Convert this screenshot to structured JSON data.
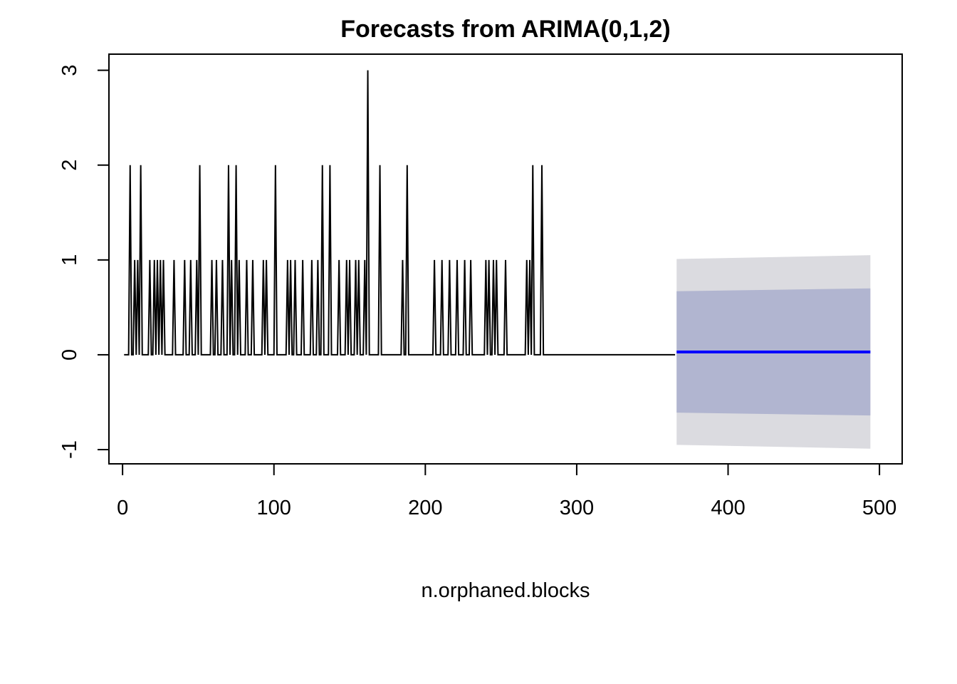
{
  "chart_data": {
    "type": "line",
    "title": "Forecasts from ARIMA(0,1,2)",
    "xlabel": "n.orphaned.blocks",
    "ylabel": "",
    "xlim": [
      -9,
      515
    ],
    "ylim": [
      -1.15,
      3.17
    ],
    "x_ticks": [
      0,
      100,
      200,
      300,
      400,
      500
    ],
    "y_ticks": [
      -1,
      0,
      1,
      2,
      3
    ],
    "grid": false,
    "colors": {
      "observed": "#000000",
      "forecast": "#0000ff",
      "band80": "#b1b5d0",
      "band95": "#dbdbe0"
    },
    "observed": {
      "x_start": 1,
      "x_end": 365,
      "events": [
        {
          "x": 5,
          "v": 2
        },
        {
          "x": 8,
          "v": 1
        },
        {
          "x": 10,
          "v": 1
        },
        {
          "x": 12,
          "v": 2
        },
        {
          "x": 18,
          "v": 1
        },
        {
          "x": 21,
          "v": 1
        },
        {
          "x": 23,
          "v": 1
        },
        {
          "x": 25,
          "v": 1
        },
        {
          "x": 27,
          "v": 1
        },
        {
          "x": 34,
          "v": 1
        },
        {
          "x": 41,
          "v": 1
        },
        {
          "x": 45,
          "v": 1
        },
        {
          "x": 49,
          "v": 1
        },
        {
          "x": 51,
          "v": 2
        },
        {
          "x": 59,
          "v": 1
        },
        {
          "x": 62,
          "v": 1
        },
        {
          "x": 66,
          "v": 1
        },
        {
          "x": 70,
          "v": 2
        },
        {
          "x": 72,
          "v": 1
        },
        {
          "x": 75,
          "v": 2
        },
        {
          "x": 77,
          "v": 1
        },
        {
          "x": 82,
          "v": 1
        },
        {
          "x": 86,
          "v": 1
        },
        {
          "x": 93,
          "v": 1
        },
        {
          "x": 95,
          "v": 1
        },
        {
          "x": 101,
          "v": 2
        },
        {
          "x": 109,
          "v": 1
        },
        {
          "x": 111,
          "v": 1
        },
        {
          "x": 114,
          "v": 1
        },
        {
          "x": 119,
          "v": 1
        },
        {
          "x": 125,
          "v": 1
        },
        {
          "x": 129,
          "v": 1
        },
        {
          "x": 132,
          "v": 2
        },
        {
          "x": 137,
          "v": 2
        },
        {
          "x": 143,
          "v": 1
        },
        {
          "x": 148,
          "v": 1
        },
        {
          "x": 150,
          "v": 1
        },
        {
          "x": 154,
          "v": 1
        },
        {
          "x": 156,
          "v": 1
        },
        {
          "x": 160,
          "v": 1
        },
        {
          "x": 162,
          "v": 3
        },
        {
          "x": 170,
          "v": 2
        },
        {
          "x": 185,
          "v": 1
        },
        {
          "x": 188,
          "v": 2
        },
        {
          "x": 206,
          "v": 1
        },
        {
          "x": 211,
          "v": 1
        },
        {
          "x": 216,
          "v": 1
        },
        {
          "x": 221,
          "v": 1
        },
        {
          "x": 226,
          "v": 1
        },
        {
          "x": 230,
          "v": 1
        },
        {
          "x": 240,
          "v": 1
        },
        {
          "x": 242,
          "v": 1
        },
        {
          "x": 245,
          "v": 1
        },
        {
          "x": 247,
          "v": 1
        },
        {
          "x": 253,
          "v": 1
        },
        {
          "x": 267,
          "v": 1
        },
        {
          "x": 269,
          "v": 1
        },
        {
          "x": 271,
          "v": 2
        },
        {
          "x": 277,
          "v": 2
        }
      ]
    },
    "forecast": {
      "x": [
        366,
        494
      ],
      "mean": [
        0.03,
        0.03
      ],
      "lo80": [
        -0.61,
        -0.64
      ],
      "hi80": [
        0.67,
        0.7
      ],
      "lo95": [
        -0.95,
        -0.99
      ],
      "hi95": [
        1.01,
        1.05
      ]
    }
  }
}
